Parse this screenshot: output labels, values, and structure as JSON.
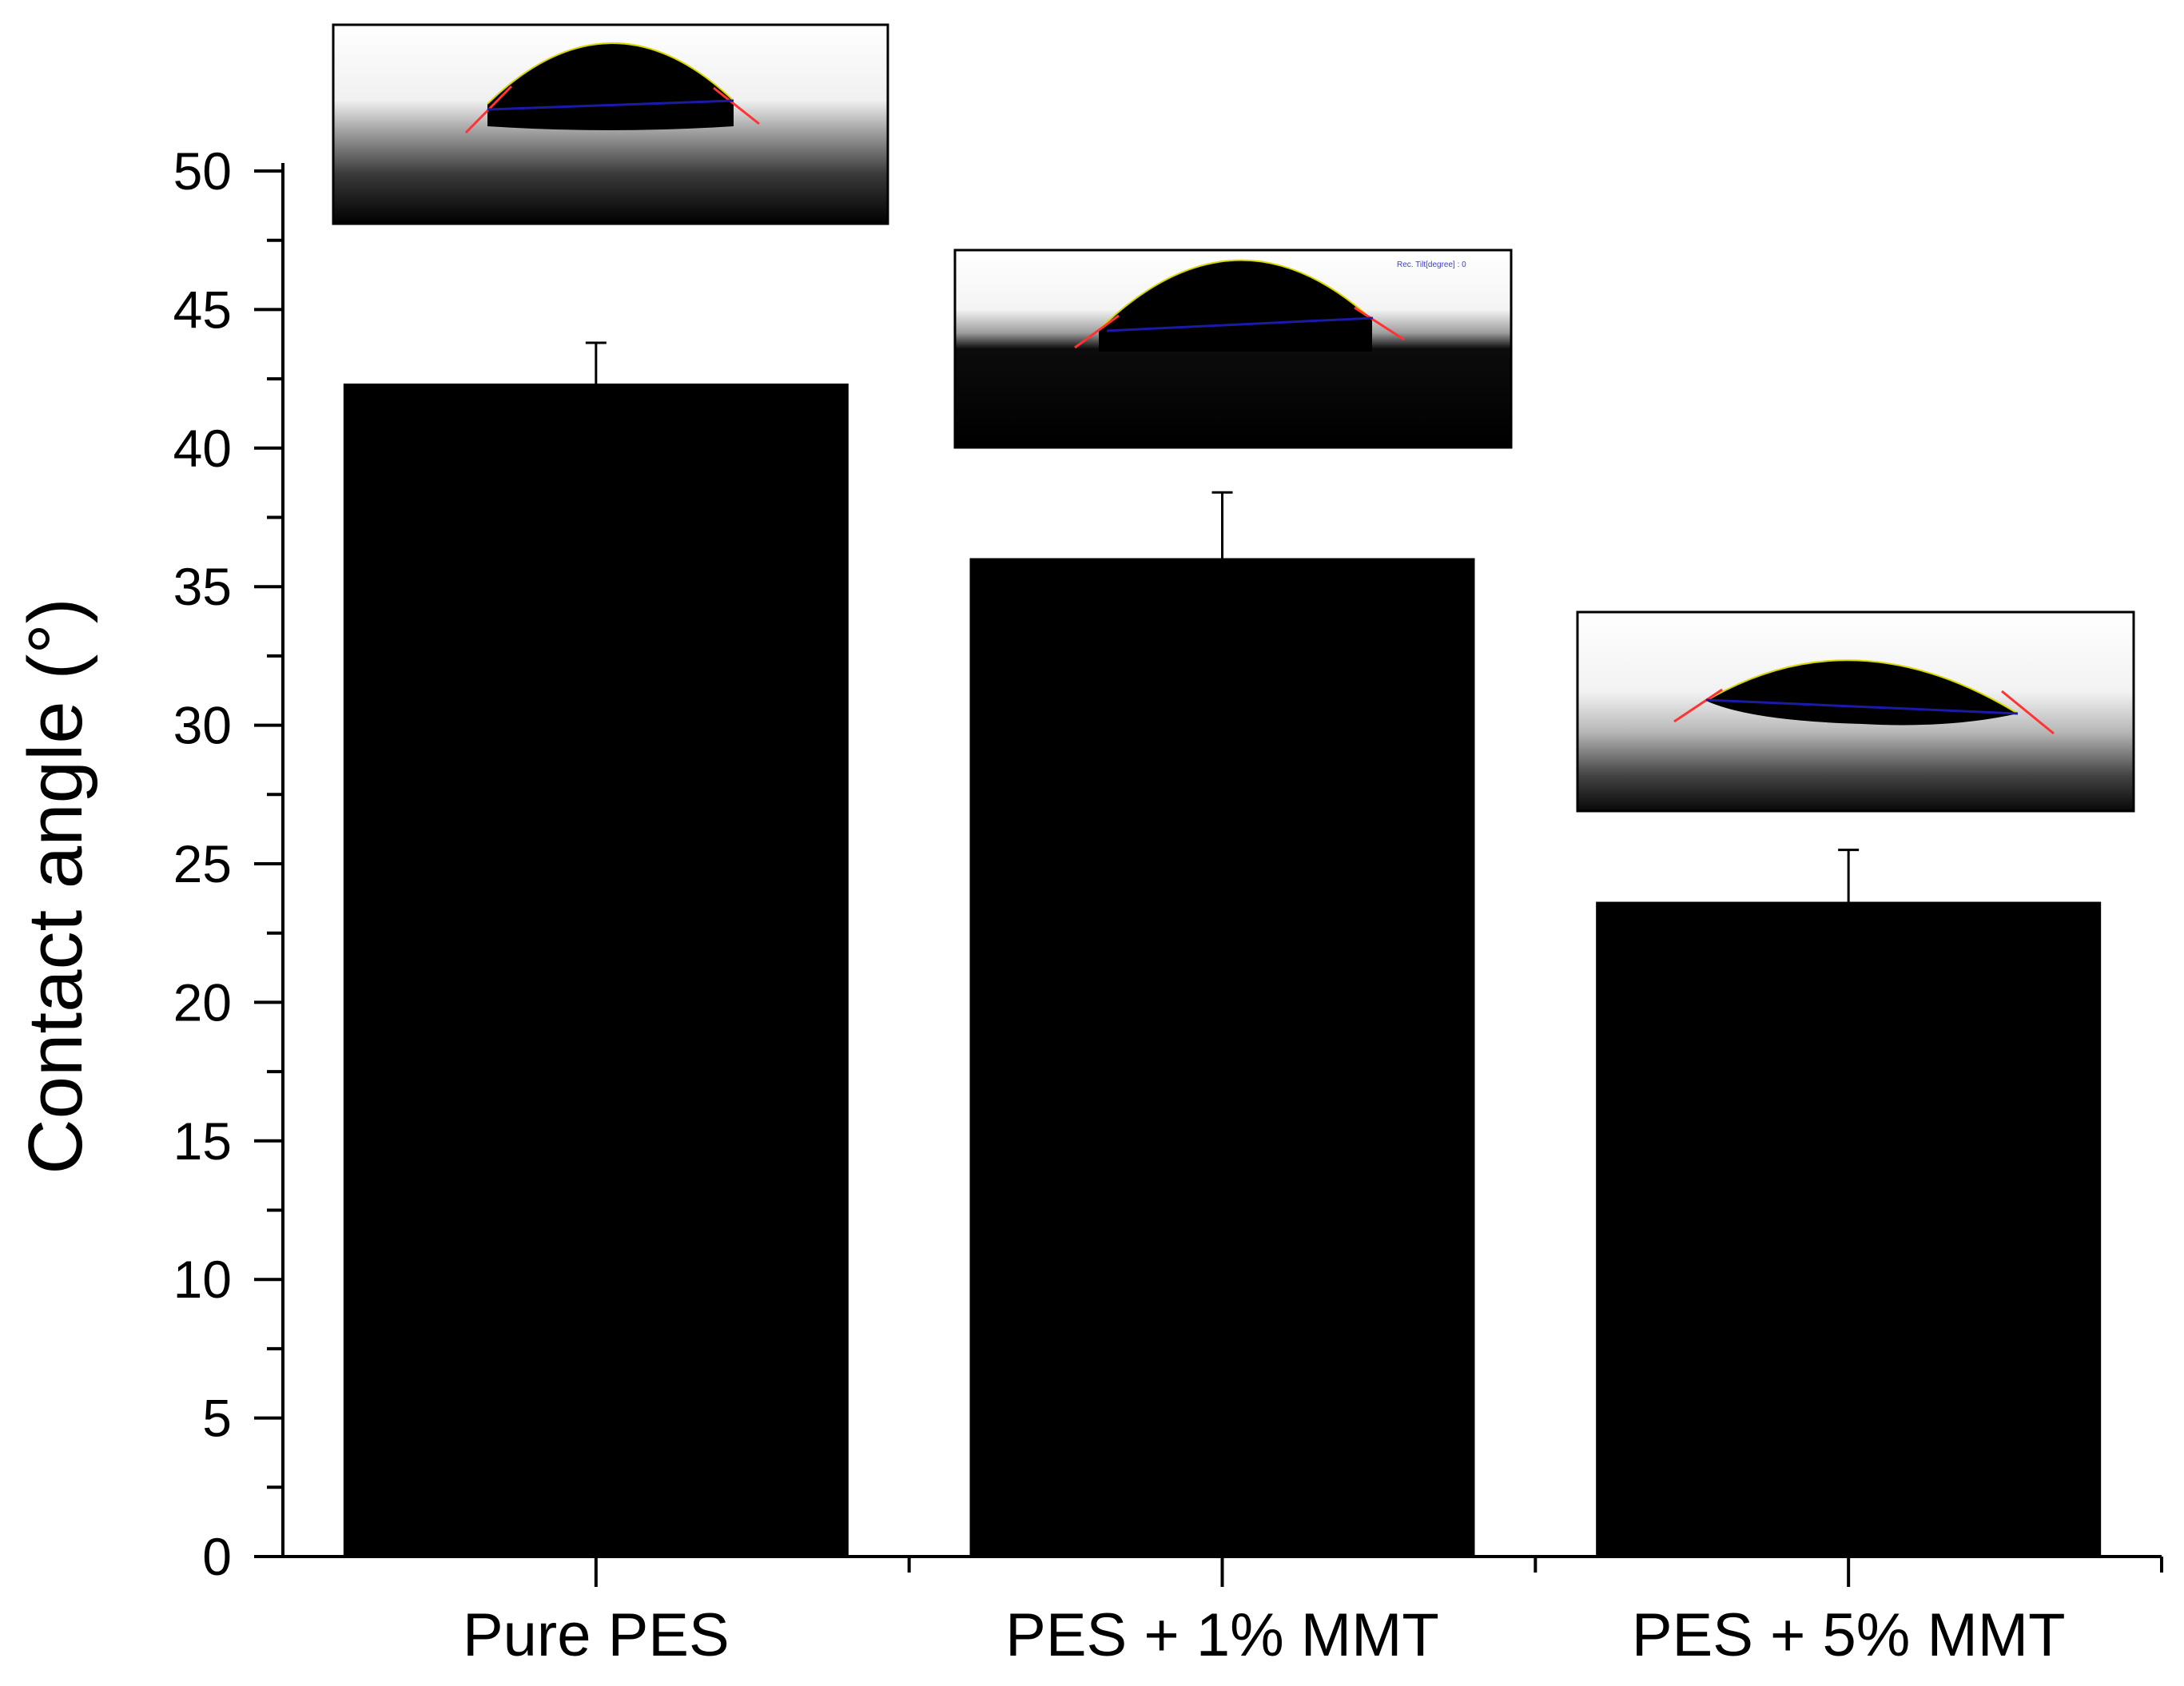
{
  "chart_data": {
    "type": "bar",
    "title": "",
    "xlabel": "",
    "ylabel": "Contact angle (°)",
    "categories": [
      "Pure PES",
      "PES + 1% MMT",
      "PES + 5% MMT"
    ],
    "values": [
      42.3,
      36.0,
      23.6
    ],
    "error": [
      1.5,
      2.4,
      1.9
    ],
    "ylim": [
      0,
      50
    ],
    "yticks": [
      "0",
      "5",
      "10",
      "15",
      "20",
      "25",
      "30",
      "35",
      "40",
      "45",
      "50"
    ],
    "grid": false,
    "legend": "none",
    "bar_color": "#000000",
    "insets": [
      {
        "depicts": "water droplet on membrane surface",
        "tilt_text": ""
      },
      {
        "depicts": "water droplet on membrane surface",
        "tilt_text": "Rec. Tilt[degree] : 0"
      },
      {
        "depicts": "water droplet on membrane surface",
        "tilt_text": ""
      }
    ],
    "colors": {
      "fit_line": "#ff3333",
      "baseline": "#1a1aa8",
      "droplet_edge": "#d8d800"
    }
  }
}
